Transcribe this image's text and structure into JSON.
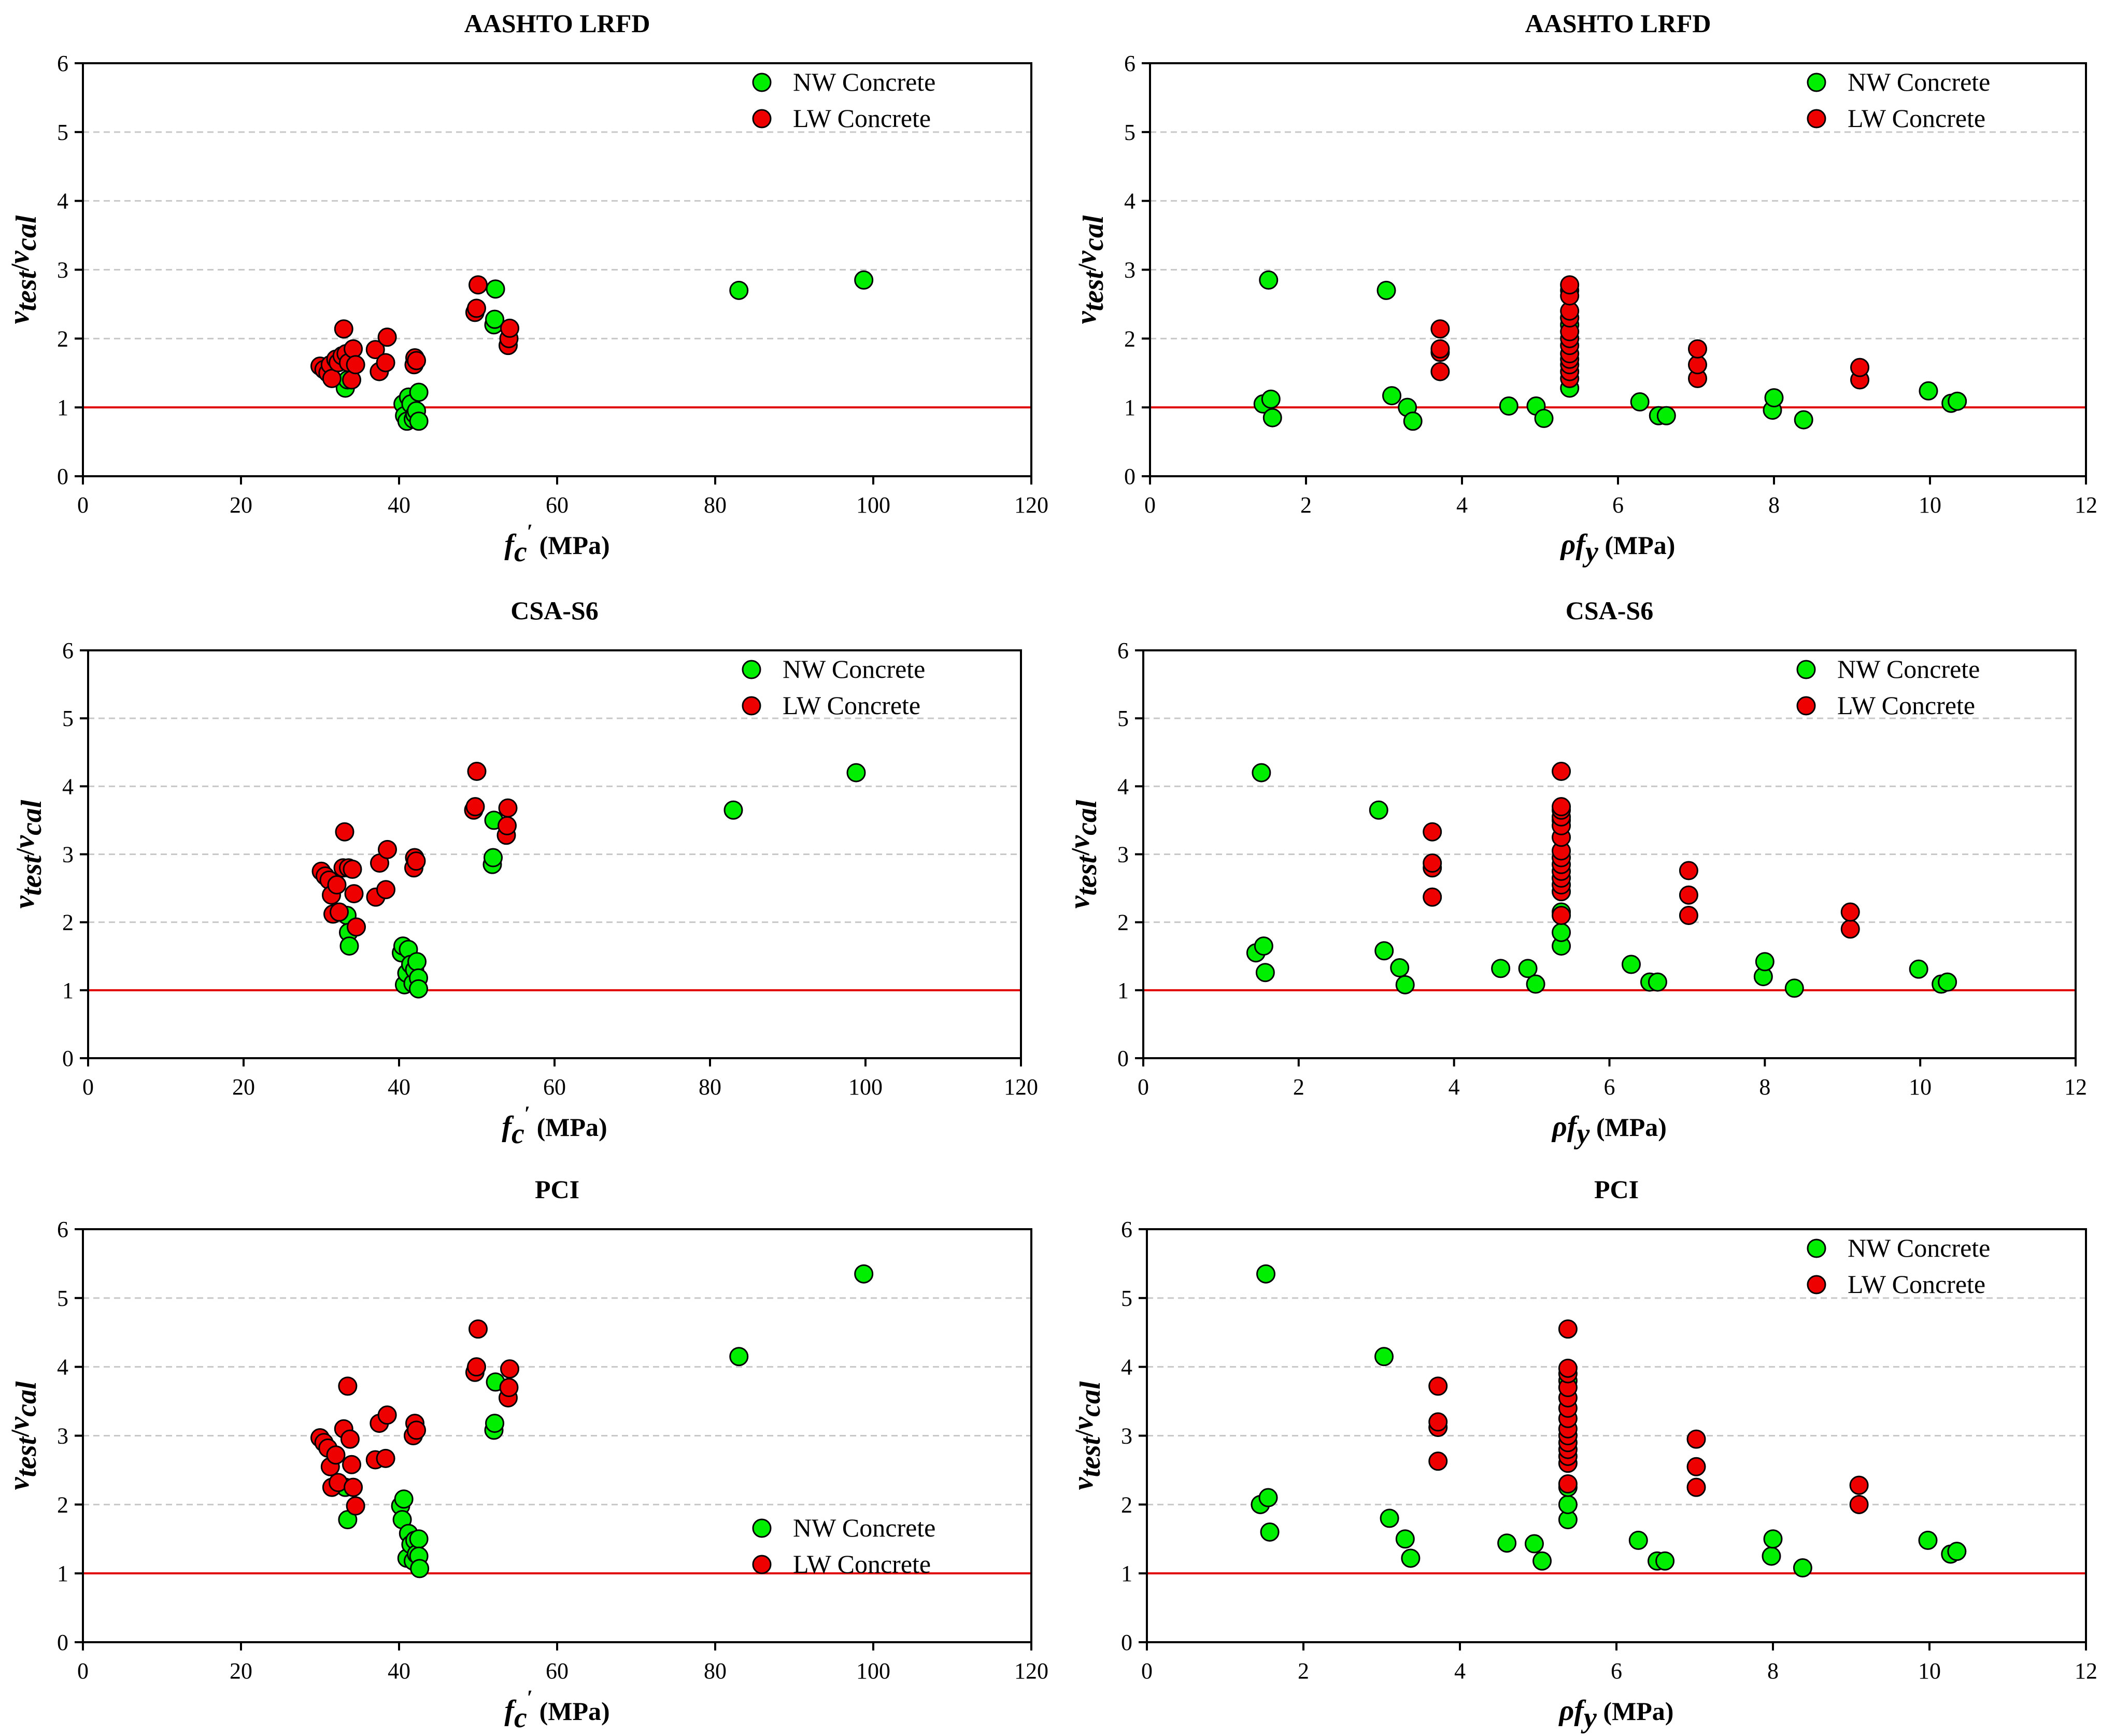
{
  "chart_data": [
    {
      "id": "p1",
      "type": "scatter",
      "title": "AASHTO LRFD",
      "xlabel_sym": "f",
      "xlabel_sub": "c",
      "xlabel_sup": "′",
      "xlabel_unit": " (MPa)",
      "ylabel": {
        "v1": "v",
        "s1": "test",
        "slash": "/",
        "v2": "v",
        "s2": "cal"
      },
      "xlim": [
        0,
        120
      ],
      "ylim": [
        0,
        6
      ],
      "xticks": [
        "0",
        "20",
        "40",
        "60",
        "80",
        "100",
        "120"
      ],
      "yticks": [
        "0",
        "1",
        "2",
        "3",
        "4",
        "5",
        "6"
      ],
      "grid": "horizontal dashed",
      "reference_line": 1,
      "legend_position": "top-right",
      "series": [
        {
          "name": "NW Concrete",
          "color": "#00ee00",
          "x": [
            33.2,
            33.5,
            40.5,
            40.7,
            41,
            41.2,
            41.5,
            41.8,
            42,
            42.2,
            42.5,
            42.5,
            52,
            52.1,
            52.2,
            83,
            98.8
          ],
          "y": [
            1.28,
            1.4,
            1.05,
            0.88,
            0.8,
            1.15,
            1.05,
            0.83,
            0.9,
            0.95,
            1.22,
            0.8,
            2.2,
            2.28,
            2.72,
            2.7,
            2.85
          ]
        },
        {
          "name": "LW Concrete",
          "color": "#ee0000",
          "x": [
            30,
            30.5,
            31,
            31.3,
            31.5,
            32,
            32.3,
            32.8,
            33,
            33.3,
            33.6,
            34,
            34.2,
            34.5,
            37,
            37.5,
            38.3,
            38.5,
            41.9,
            42,
            42.2,
            49.6,
            49.8,
            50,
            53.8,
            53.9,
            54
          ],
          "y": [
            1.6,
            1.55,
            1.5,
            1.62,
            1.42,
            1.7,
            1.65,
            1.75,
            2.14,
            1.78,
            1.65,
            1.4,
            1.85,
            1.62,
            1.84,
            1.52,
            1.65,
            2.02,
            1.62,
            1.72,
            1.68,
            2.38,
            2.44,
            2.78,
            1.9,
            2.0,
            2.15
          ]
        }
      ],
      "legend": [
        "NW Concrete",
        "LW Concrete"
      ]
    },
    {
      "id": "p2",
      "type": "scatter",
      "title": "AASHTO LRFD",
      "xlabel_sym": "ρf",
      "xlabel_sub": "y",
      "xlabel_unit": " (MPa)",
      "ylabel": {
        "v1": "v",
        "s1": "test",
        "slash": "/",
        "v2": "v",
        "s2": "cal"
      },
      "xlim": [
        0,
        12
      ],
      "ylim": [
        0,
        6
      ],
      "xticks": [
        "0",
        "2",
        "4",
        "6",
        "8",
        "10",
        "12"
      ],
      "yticks": [
        "0",
        "1",
        "2",
        "3",
        "4",
        "5",
        "6"
      ],
      "grid": "horizontal dashed",
      "reference_line": 1,
      "legend_position": "top-right",
      "series": [
        {
          "name": "NW Concrete",
          "color": "#00ee00",
          "x": [
            1.45,
            1.52,
            1.55,
            1.57,
            3.03,
            3.1,
            3.3,
            3.37,
            4.6,
            4.95,
            5.05,
            5.38,
            5.38,
            5.38,
            5.38,
            6.28,
            6.52,
            6.62,
            7.98,
            8.0,
            8.38,
            9.98,
            10.27,
            10.35
          ],
          "y": [
            1.05,
            2.85,
            1.12,
            0.85,
            2.7,
            1.17,
            1.0,
            0.8,
            1.02,
            1.02,
            0.84,
            1.28,
            2.2,
            2.3,
            2.7,
            1.08,
            0.88,
            0.88,
            0.96,
            1.14,
            0.82,
            1.24,
            1.06,
            1.09
          ]
        },
        {
          "name": "LW Concrete",
          "color": "#ee0000",
          "x": [
            3.72,
            3.72,
            3.72,
            3.72,
            5.38,
            5.38,
            5.38,
            5.38,
            5.38,
            5.38,
            5.38,
            5.38,
            5.38,
            5.38,
            5.38,
            5.38,
            7.02,
            7.02,
            7.02,
            9.1,
            9.1
          ],
          "y": [
            1.52,
            1.8,
            1.85,
            2.14,
            1.42,
            1.52,
            1.62,
            1.7,
            1.78,
            1.9,
            2.0,
            2.1,
            2.3,
            2.4,
            2.62,
            2.78,
            1.42,
            1.62,
            1.85,
            1.4,
            1.58
          ]
        }
      ],
      "legend": [
        "NW Concrete",
        "LW Concrete"
      ]
    },
    {
      "id": "p3",
      "type": "scatter",
      "title": "CSA-S6",
      "xlabel_sym": "f",
      "xlabel_sub": "c",
      "xlabel_sup": "′",
      "xlabel_unit": " (MPa)",
      "ylabel": {
        "v1": "v",
        "s1": "test",
        "slash": "/",
        "v2": "v",
        "s2": "cal"
      },
      "xlim": [
        0,
        120
      ],
      "ylim": [
        0,
        6
      ],
      "xticks": [
        "0",
        "20",
        "40",
        "60",
        "80",
        "100",
        "120"
      ],
      "yticks": [
        "0",
        "1",
        "2",
        "3",
        "4",
        "5",
        "6"
      ],
      "grid": "horizontal dashed",
      "reference_line": 1,
      "legend_position": "top-right",
      "series": [
        {
          "name": "NW Concrete",
          "color": "#00ee00",
          "x": [
            33.3,
            33.5,
            33.6,
            40.3,
            40.5,
            40.7,
            41,
            41.2,
            41.5,
            41.8,
            42,
            42.3,
            42.5,
            42.5,
            52,
            52.1,
            52.2,
            83,
            98.8
          ],
          "y": [
            2.1,
            1.85,
            1.65,
            1.55,
            1.65,
            1.08,
            1.25,
            1.6,
            1.38,
            1.1,
            1.3,
            1.42,
            1.18,
            1.02,
            2.85,
            2.95,
            3.5,
            3.65,
            4.2
          ]
        },
        {
          "name": "LW Concrete",
          "color": "#ee0000",
          "x": [
            30,
            30.5,
            31,
            31.3,
            31.5,
            32,
            32.3,
            32.8,
            33,
            33.5,
            34,
            34.2,
            34.5,
            37,
            37.5,
            38.3,
            38.5,
            41.9,
            42,
            42.2,
            49.6,
            49.8,
            50,
            53.8,
            53.9,
            54
          ],
          "y": [
            2.75,
            2.68,
            2.62,
            2.4,
            2.12,
            2.55,
            2.15,
            2.8,
            3.33,
            2.8,
            2.78,
            2.42,
            1.93,
            2.37,
            2.87,
            2.48,
            3.07,
            2.8,
            2.95,
            2.9,
            3.65,
            3.7,
            4.22,
            3.28,
            3.42,
            3.68
          ]
        }
      ],
      "legend": [
        "NW Concrete",
        "LW Concrete"
      ]
    },
    {
      "id": "p4",
      "type": "scatter",
      "title": "CSA-S6",
      "xlabel_sym": "ρf",
      "xlabel_sub": "y",
      "xlabel_unit": " (MPa)",
      "ylabel": {
        "v1": "v",
        "s1": "test",
        "slash": "/",
        "v2": "v",
        "s2": "cal"
      },
      "xlim": [
        0,
        12
      ],
      "ylim": [
        0,
        6
      ],
      "xticks": [
        "0",
        "2",
        "4",
        "6",
        "8",
        "10",
        "12"
      ],
      "yticks": [
        "0",
        "1",
        "2",
        "3",
        "4",
        "5",
        "6"
      ],
      "grid": "horizontal dashed",
      "reference_line": 1,
      "legend_position": "top-right",
      "series": [
        {
          "name": "NW Concrete",
          "color": "#00ee00",
          "x": [
            1.45,
            1.52,
            1.55,
            1.57,
            3.03,
            3.1,
            3.3,
            3.37,
            4.6,
            4.95,
            5.05,
            5.38,
            5.38,
            5.38,
            5.38,
            6.28,
            6.52,
            6.62,
            7.98,
            8.0,
            8.38,
            9.98,
            10.27,
            10.35
          ],
          "y": [
            1.55,
            4.2,
            1.65,
            1.26,
            3.65,
            1.58,
            1.33,
            1.08,
            1.32,
            1.32,
            1.09,
            1.65,
            1.85,
            2.15,
            3.5,
            1.38,
            1.12,
            1.12,
            1.2,
            1.42,
            1.03,
            1.31,
            1.09,
            1.12
          ]
        },
        {
          "name": "LW Concrete",
          "color": "#ee0000",
          "x": [
            3.72,
            3.72,
            3.72,
            3.72,
            5.38,
            5.38,
            5.38,
            5.38,
            5.38,
            5.38,
            5.38,
            5.38,
            5.38,
            5.38,
            5.38,
            5.38,
            5.38,
            5.38,
            7.02,
            7.02,
            7.02,
            9.1,
            9.1
          ],
          "y": [
            2.37,
            2.8,
            2.87,
            3.33,
            2.1,
            2.45,
            2.55,
            2.65,
            2.75,
            2.85,
            2.95,
            3.05,
            3.25,
            3.42,
            3.55,
            3.65,
            3.7,
            4.22,
            2.1,
            2.4,
            2.76,
            1.9,
            2.15
          ]
        }
      ],
      "legend": [
        "NW Concrete",
        "LW Concrete"
      ]
    },
    {
      "id": "p5",
      "type": "scatter",
      "title": "PCI",
      "xlabel_sym": "f",
      "xlabel_sub": "c",
      "xlabel_sup": "′",
      "xlabel_unit": " (MPa)",
      "ylabel": {
        "v1": "v",
        "s1": "test",
        "slash": "/",
        "v2": "v",
        "s2": "cal"
      },
      "xlim": [
        0,
        120
      ],
      "ylim": [
        0,
        6
      ],
      "xticks": [
        "0",
        "20",
        "40",
        "60",
        "80",
        "100",
        "120"
      ],
      "yticks": [
        "0",
        "1",
        "2",
        "3",
        "4",
        "5",
        "6"
      ],
      "grid": "horizontal dashed",
      "reference_line": 1,
      "legend_position": "bottom-right",
      "series": [
        {
          "name": "NW Concrete",
          "color": "#00ee00",
          "x": [
            33.2,
            33.5,
            40.2,
            40.4,
            40.6,
            41,
            41.2,
            41.5,
            41.8,
            42,
            42.2,
            42.5,
            42.5,
            42.6,
            52,
            52.1,
            52.2,
            83,
            98.8
          ],
          "y": [
            2.25,
            1.78,
            1.98,
            1.78,
            2.08,
            1.22,
            1.58,
            1.42,
            1.18,
            1.48,
            1.28,
            1.5,
            1.25,
            1.07,
            3.08,
            3.18,
            3.78,
            4.15,
            5.35
          ]
        },
        {
          "name": "LW Concrete",
          "color": "#ee0000",
          "x": [
            30,
            30.5,
            31,
            31.3,
            31.5,
            32,
            32.3,
            33,
            33.5,
            33.8,
            34,
            34.2,
            34.5,
            37,
            37.5,
            38.3,
            38.5,
            41.8,
            42,
            42.2,
            49.6,
            49.8,
            50,
            53.8,
            53.9,
            54
          ],
          "y": [
            2.97,
            2.9,
            2.82,
            2.55,
            2.25,
            2.72,
            2.32,
            3.1,
            3.72,
            2.95,
            2.58,
            2.25,
            1.98,
            2.65,
            3.18,
            2.67,
            3.3,
            3.0,
            3.18,
            3.08,
            3.92,
            4.0,
            4.55,
            3.55,
            3.7,
            3.97
          ]
        }
      ],
      "legend": [
        "NW Concrete",
        "LW Concrete"
      ]
    },
    {
      "id": "p6",
      "type": "scatter",
      "title": "PCI",
      "xlabel_sym": "ρf",
      "xlabel_sub": "y",
      "xlabel_unit": " (MPa)",
      "ylabel": {
        "v1": "v",
        "s1": "test",
        "slash": "/",
        "v2": "v",
        "s2": "cal"
      },
      "xlim": [
        0,
        12
      ],
      "ylim": [
        0,
        6
      ],
      "xticks": [
        "0",
        "2",
        "4",
        "6",
        "8",
        "10",
        "12"
      ],
      "yticks": [
        "0",
        "1",
        "2",
        "3",
        "4",
        "5",
        "6"
      ],
      "grid": "horizontal dashed",
      "reference_line": 1,
      "legend_position": "top-right",
      "series": [
        {
          "name": "NW Concrete",
          "color": "#00ee00",
          "x": [
            1.45,
            1.52,
            1.55,
            1.57,
            3.03,
            3.1,
            3.3,
            3.37,
            4.6,
            4.95,
            5.05,
            5.38,
            5.38,
            5.38,
            5.38,
            6.28,
            6.52,
            6.62,
            7.98,
            8.0,
            8.38,
            9.98,
            10.27,
            10.35
          ],
          "y": [
            2.0,
            5.35,
            2.1,
            1.6,
            4.15,
            1.8,
            1.5,
            1.22,
            1.44,
            1.43,
            1.18,
            1.78,
            2.0,
            2.25,
            3.8,
            1.48,
            1.18,
            1.18,
            1.25,
            1.5,
            1.08,
            1.48,
            1.28,
            1.32
          ]
        },
        {
          "name": "LW Concrete",
          "color": "#ee0000",
          "x": [
            3.72,
            3.72,
            3.72,
            3.72,
            5.38,
            5.38,
            5.38,
            5.38,
            5.38,
            5.38,
            5.38,
            5.38,
            5.38,
            5.38,
            5.38,
            5.38,
            5.38,
            5.38,
            7.02,
            7.02,
            7.02,
            9.1,
            9.1
          ],
          "y": [
            2.63,
            3.12,
            3.2,
            3.72,
            2.3,
            2.6,
            2.7,
            2.8,
            2.9,
            3.0,
            3.1,
            3.25,
            3.4,
            3.55,
            3.7,
            3.9,
            3.98,
            4.55,
            2.25,
            2.55,
            2.95,
            2.0,
            2.28
          ]
        }
      ],
      "legend": [
        "NW Concrete",
        "LW Concrete"
      ]
    }
  ]
}
